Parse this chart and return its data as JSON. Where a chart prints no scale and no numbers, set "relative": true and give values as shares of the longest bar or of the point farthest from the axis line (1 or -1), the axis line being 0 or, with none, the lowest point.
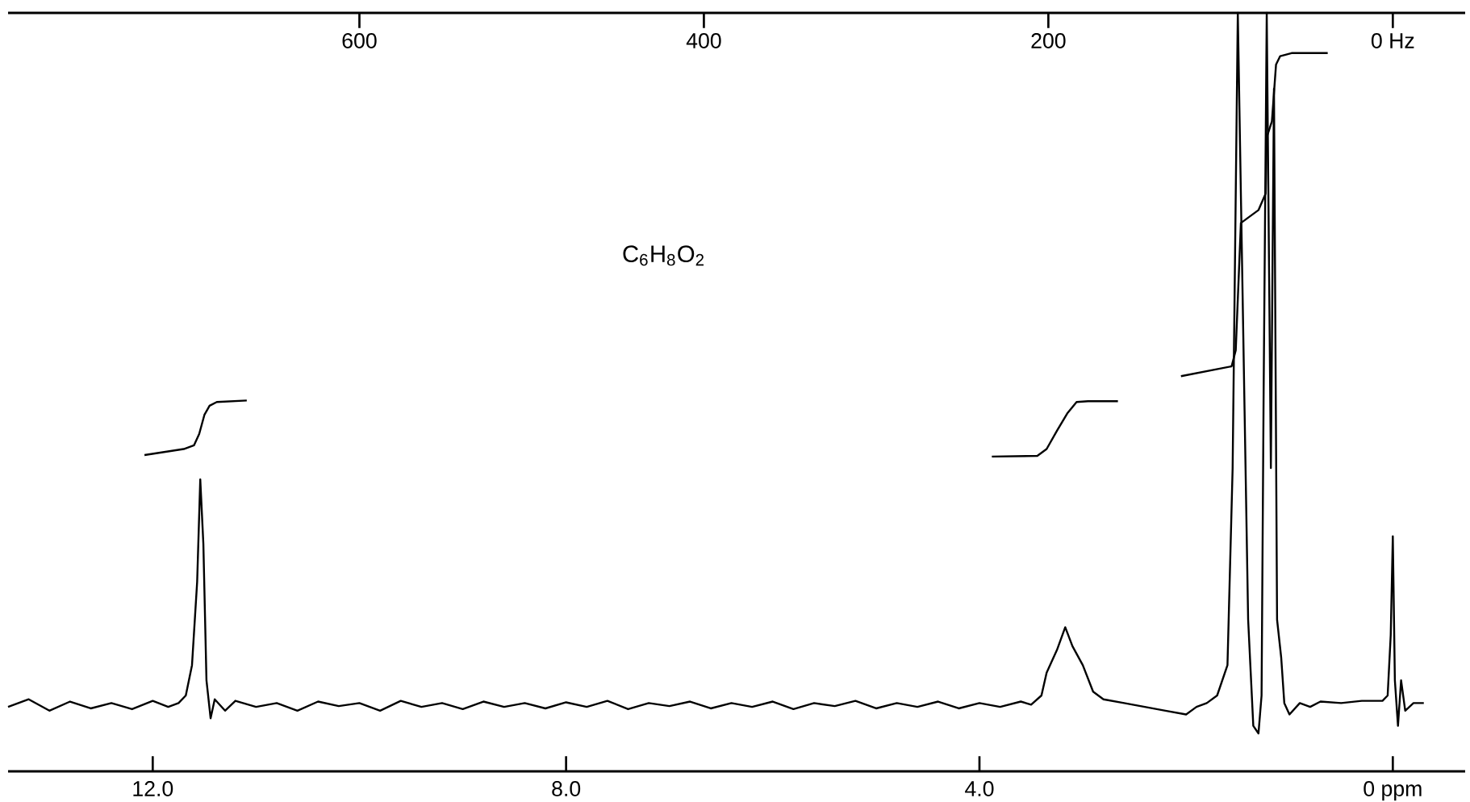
{
  "chart_data": {
    "type": "line",
    "relative": true,
    "marker": "none",
    "line_style": "solid",
    "annotations": [
      "C$_{6}$H$_{8}$O$_{2}$"
    ],
    "xlim": [
      13.4,
      -0.7
    ],
    "xticks": [
      {
        "value": 12,
        "label": "12.0"
      },
      {
        "value": 8,
        "label": "8.0"
      },
      {
        "value": 4,
        "label": "4.0"
      },
      {
        "value": 0,
        "label": "0 ppm"
      }
    ],
    "x2lim": [
      804,
      -42
    ],
    "x2ticks": [
      600,
      400,
      200,
      {
        "value": 0,
        "label": "0 Hz"
      }
    ],
    "series": [
      {
        "color": "#000000",
        "x": [
          13.4,
          13.2,
          13.0,
          12.8,
          12.6,
          12.4,
          12.2,
          12.0,
          11.85,
          11.75,
          11.68,
          11.62,
          11.57,
          11.54,
          11.51,
          11.48,
          11.44,
          11.4,
          11.3,
          11.2,
          11.0,
          10.8,
          10.6,
          10.4,
          10.2,
          10.0,
          9.8,
          9.6,
          9.4,
          9.2,
          9.0,
          8.8,
          8.6,
          8.4,
          8.2,
          8.0,
          7.8,
          7.6,
          7.4,
          7.2,
          7.0,
          6.8,
          6.6,
          6.4,
          6.2,
          6.0,
          5.8,
          5.6,
          5.4,
          5.2,
          5.0,
          4.8,
          4.6,
          4.4,
          4.2,
          4.0,
          3.8,
          3.6,
          3.5,
          3.4,
          3.35,
          3.25,
          3.17,
          3.1,
          3.0,
          2.9,
          2.8,
          2.6,
          2.4,
          2.2,
          2.0,
          1.9,
          1.8,
          1.7,
          1.6,
          1.55,
          1.5,
          1.45,
          1.4,
          1.35,
          1.3,
          1.27,
          1.25,
          1.22,
          1.18,
          1.15,
          1.12,
          1.08,
          1.05,
          1.0,
          0.9,
          0.8,
          0.7,
          0.5,
          0.3,
          0.1,
          0.05,
          0.02,
          0.0,
          -0.02,
          -0.05,
          -0.08,
          -0.12,
          -0.2,
          -0.3
        ],
        "values": [
          0.085,
          0.095,
          0.08,
          0.092,
          0.083,
          0.09,
          0.082,
          0.093,
          0.085,
          0.09,
          0.1,
          0.14,
          0.25,
          0.385,
          0.3,
          0.12,
          0.07,
          0.095,
          0.08,
          0.093,
          0.085,
          0.09,
          0.08,
          0.092,
          0.086,
          0.09,
          0.08,
          0.093,
          0.085,
          0.09,
          0.082,
          0.092,
          0.085,
          0.09,
          0.083,
          0.091,
          0.085,
          0.093,
          0.082,
          0.09,
          0.086,
          0.092,
          0.083,
          0.09,
          0.085,
          0.092,
          0.082,
          0.09,
          0.086,
          0.093,
          0.083,
          0.09,
          0.085,
          0.092,
          0.083,
          0.09,
          0.085,
          0.092,
          0.088,
          0.1,
          0.13,
          0.16,
          0.19,
          0.165,
          0.14,
          0.105,
          0.095,
          0.09,
          0.085,
          0.08,
          0.075,
          0.085,
          0.09,
          0.1,
          0.14,
          0.4,
          1.0,
          0.6,
          0.2,
          0.06,
          0.05,
          0.1,
          0.5,
          1.0,
          0.4,
          0.9,
          0.2,
          0.15,
          0.09,
          0.075,
          0.09,
          0.085,
          0.092,
          0.09,
          0.093,
          0.093,
          0.1,
          0.18,
          0.31,
          0.12,
          0.06,
          0.12,
          0.08,
          0.09,
          0.09
        ]
      },
      {
        "color": "#000000",
        "x": [
          12.08,
          11.7,
          11.6,
          11.55,
          11.5,
          11.45,
          11.38,
          11.09
        ],
        "values": [
          0.417,
          0.425,
          0.43,
          0.445,
          0.47,
          0.482,
          0.487,
          0.489
        ]
      },
      {
        "color": "#000000",
        "x": [
          3.88,
          3.44,
          3.35,
          3.25,
          3.15,
          3.06,
          2.95,
          2.66
        ],
        "values": [
          0.415,
          0.416,
          0.425,
          0.449,
          0.472,
          0.487,
          0.488,
          0.488
        ]
      },
      {
        "color": "#000000",
        "x": [
          2.05,
          1.56,
          1.52,
          1.47,
          1.3,
          1.23,
          1.22,
          1.17,
          1.13,
          1.09,
          0.98,
          0.63
        ],
        "values": [
          0.521,
          0.534,
          0.555,
          0.723,
          0.74,
          0.762,
          0.836,
          0.857,
          0.932,
          0.943,
          0.947,
          0.947
        ]
      }
    ]
  }
}
